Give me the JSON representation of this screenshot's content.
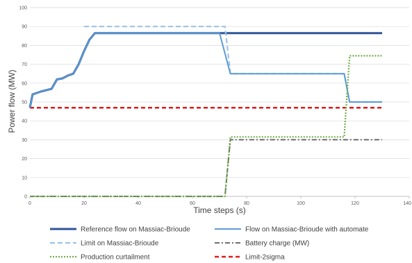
{
  "chart_data": {
    "type": "line",
    "xlabel": "Time steps (s)",
    "ylabel": "Power flow (MW)",
    "xlim": [
      0,
      140
    ],
    "ylim": [
      0,
      100
    ],
    "xticks": [
      0,
      20,
      40,
      60,
      80,
      100,
      120,
      140
    ],
    "xtick_labels": [
      "0",
      "20",
      "40",
      "60",
      "80",
      "100",
      "120",
      "140"
    ],
    "yticks": [
      0,
      10,
      20,
      30,
      40,
      50,
      60,
      70,
      80,
      90,
      100
    ],
    "grid": "horizontal",
    "legend_position": "bottom",
    "series": [
      {
        "name": "Reference flow on Massiac-Brioude",
        "color": "#2e5597",
        "style": "solid-thick",
        "points": [
          [
            0,
            47
          ],
          [
            1,
            54
          ],
          [
            4,
            55.5
          ],
          [
            8,
            57
          ],
          [
            10,
            62
          ],
          [
            12,
            62.5
          ],
          [
            14,
            64
          ],
          [
            16,
            65
          ],
          [
            18,
            70
          ],
          [
            20,
            77
          ],
          [
            22,
            83
          ],
          [
            24,
            86.5
          ],
          [
            28,
            86.5
          ],
          [
            60,
            86.5
          ],
          [
            75,
            86.5
          ],
          [
            100,
            86.5
          ],
          [
            130,
            86.5
          ]
        ]
      },
      {
        "name": "Flow on Massiac-Brioude with automate",
        "color": "#5b9bd5",
        "style": "solid",
        "points": [
          [
            0,
            47
          ],
          [
            1,
            54
          ],
          [
            4,
            55.5
          ],
          [
            8,
            57
          ],
          [
            10,
            62
          ],
          [
            12,
            62.5
          ],
          [
            14,
            64
          ],
          [
            16,
            65
          ],
          [
            18,
            70
          ],
          [
            20,
            77
          ],
          [
            22,
            83
          ],
          [
            24,
            86.5
          ],
          [
            28,
            86.5
          ],
          [
            60,
            86.5
          ],
          [
            70,
            86.5
          ],
          [
            74,
            65
          ],
          [
            100,
            65
          ],
          [
            116,
            65
          ],
          [
            118,
            50
          ],
          [
            130,
            50
          ]
        ]
      },
      {
        "name": "Limit on Massiac-Brioude",
        "color": "#9dc3e6",
        "style": "dashed",
        "points": [
          [
            20,
            90
          ],
          [
            72,
            90
          ],
          [
            74,
            65
          ],
          [
            116,
            65
          ],
          [
            118,
            50
          ],
          [
            130,
            50
          ]
        ]
      },
      {
        "name": "Battery charge (MW)",
        "color": "#595959",
        "style": "dash-dot",
        "points": [
          [
            0,
            0
          ],
          [
            72,
            0
          ],
          [
            74,
            30
          ],
          [
            130,
            30
          ]
        ]
      },
      {
        "name": "Production curtailment",
        "color": "#70ad47",
        "style": "dotted",
        "points": [
          [
            0,
            0
          ],
          [
            72,
            0
          ],
          [
            74,
            31.5
          ],
          [
            116,
            31.5
          ],
          [
            118,
            74.5
          ],
          [
            130,
            74.5
          ]
        ]
      },
      {
        "name": "Limit-2sigma",
        "color": "#e21a1a",
        "style": "dashed-thick",
        "points": [
          [
            0,
            47
          ],
          [
            130,
            47
          ]
        ]
      }
    ]
  }
}
